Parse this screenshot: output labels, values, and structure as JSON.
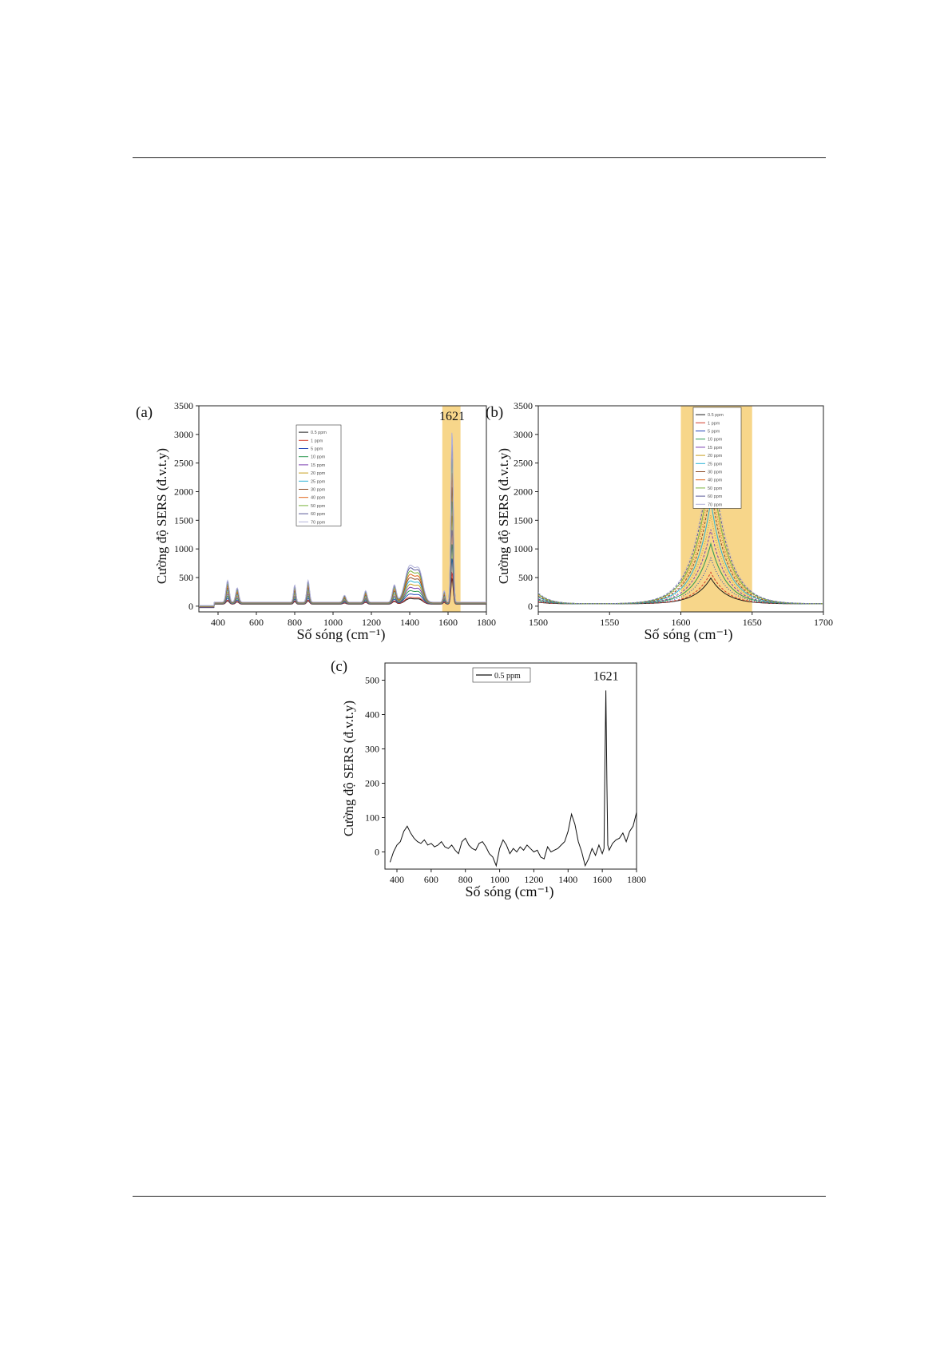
{
  "page": {
    "rules": [
      "top",
      "bottom"
    ]
  },
  "colors": {
    "highlight": "#f7d68a",
    "palette": [
      "#1a1a1a",
      "#d43a2a",
      "#2346b8",
      "#2d9a52",
      "#7a3fb0",
      "#c8a020",
      "#2bb3d6",
      "#8a4a24",
      "#e0651a",
      "#7ab33c",
      "#5a5a9a",
      "#b0b0d8",
      "#e8a060"
    ]
  },
  "chart_data": [
    {
      "panel": "(a)",
      "type": "line",
      "ylabel": "Cường độ SERS (đ.v.t.y)",
      "xlabel": "Số sóng (cm⁻¹)",
      "xlim": [
        300,
        1800
      ],
      "ylim": [
        -100,
        3500
      ],
      "xticks": [
        400,
        600,
        800,
        1000,
        1200,
        1400,
        1600,
        1800
      ],
      "yticks": [
        0,
        500,
        1000,
        1500,
        2000,
        2500,
        3000,
        3500
      ],
      "highlight_range": [
        1570,
        1665
      ],
      "annotations": [
        {
          "text": "1621",
          "x": 1621,
          "y": 3250
        }
      ],
      "legend": [
        "0.5 ppm",
        "1 ppm",
        "5 ppm",
        "10 ppm",
        "15 ppm",
        "20 ppm",
        "25 ppm",
        "30 ppm",
        "40 ppm",
        "50 ppm",
        "60 ppm",
        "70 ppm"
      ],
      "legend_position": "upper-middle",
      "series_peaks": [
        {
          "name": "0.5 ppm",
          "peak_1621": 450
        },
        {
          "name": "1 ppm",
          "peak_1621": 550
        },
        {
          "name": "5 ppm",
          "peak_1621": 800
        },
        {
          "name": "10 ppm",
          "peak_1621": 1050
        },
        {
          "name": "15 ppm",
          "peak_1621": 1300
        },
        {
          "name": "20 ppm",
          "peak_1621": 1550
        },
        {
          "name": "25 ppm",
          "peak_1621": 1800
        },
        {
          "name": "30 ppm",
          "peak_1621": 2050
        },
        {
          "name": "40 ppm",
          "peak_1621": 2300
        },
        {
          "name": "50 ppm",
          "peak_1621": 2550
        },
        {
          "name": "60 ppm",
          "peak_1621": 2800
        },
        {
          "name": "70 ppm",
          "peak_1621": 3000
        }
      ]
    },
    {
      "panel": "(b)",
      "type": "line",
      "ylabel": "Cường độ SERS (đ.v.t.y)",
      "xlabel": "Số sóng (cm⁻¹)",
      "xlim": [
        1500,
        1700
      ],
      "ylim": [
        -100,
        3500
      ],
      "xticks": [
        1500,
        1550,
        1600,
        1650,
        1700
      ],
      "yticks": [
        0,
        500,
        1000,
        1500,
        2000,
        2500,
        3000,
        3500
      ],
      "highlight_range": [
        1600,
        1650
      ],
      "annotations": [
        {
          "text": "1621",
          "x": 1621,
          "y": 3250
        }
      ],
      "legend": [
        "0.5 ppm",
        "1 ppm",
        "5 ppm",
        "10 ppm",
        "15 ppm",
        "20 ppm",
        "25 ppm",
        "30 ppm",
        "40 ppm",
        "50 ppm",
        "60 ppm",
        "70 ppm"
      ],
      "legend_position": "top-right",
      "series_peaks": [
        450,
        550,
        800,
        1050,
        1300,
        1550,
        1800,
        2050,
        2300,
        2550,
        2800,
        3000
      ]
    },
    {
      "panel": "(c)",
      "type": "line",
      "ylabel": "Cường độ SERS (đ.v.t.y)",
      "xlabel": "Số sóng (cm⁻¹)",
      "xlim": [
        330,
        1800
      ],
      "ylim": [
        -50,
        550
      ],
      "xticks": [
        400,
        600,
        800,
        1000,
        1200,
        1400,
        1600,
        1800
      ],
      "yticks": [
        0,
        100,
        200,
        300,
        400,
        500
      ],
      "annotations": [
        {
          "text": "1621",
          "x": 1621,
          "y": 500
        }
      ],
      "legend": [
        "0.5 ppm"
      ],
      "legend_position": "top-middle",
      "series": [
        {
          "name": "0.5 ppm",
          "x": [
            360,
            380,
            400,
            420,
            440,
            460,
            480,
            500,
            520,
            540,
            560,
            580,
            600,
            620,
            640,
            660,
            680,
            700,
            720,
            740,
            760,
            780,
            800,
            820,
            840,
            860,
            880,
            900,
            920,
            940,
            960,
            980,
            1000,
            1020,
            1040,
            1060,
            1080,
            1100,
            1120,
            1140,
            1160,
            1180,
            1200,
            1220,
            1240,
            1260,
            1280,
            1300,
            1320,
            1340,
            1360,
            1380,
            1400,
            1420,
            1440,
            1460,
            1480,
            1500,
            1520,
            1540,
            1560,
            1580,
            1600,
            1610,
            1615,
            1621,
            1627,
            1632,
            1640,
            1660,
            1680,
            1700,
            1720,
            1740,
            1760,
            1780,
            1800
          ],
          "y": [
            -30,
            0,
            20,
            30,
            60,
            75,
            55,
            40,
            30,
            25,
            35,
            20,
            25,
            15,
            20,
            30,
            15,
            10,
            20,
            5,
            -5,
            30,
            40,
            20,
            10,
            5,
            25,
            30,
            15,
            -5,
            -15,
            -40,
            10,
            35,
            20,
            -5,
            10,
            0,
            15,
            5,
            20,
            10,
            0,
            5,
            -15,
            -20,
            15,
            0,
            5,
            10,
            20,
            30,
            60,
            110,
            80,
            30,
            0,
            -40,
            -20,
            10,
            -10,
            20,
            -5,
            10,
            250,
            470,
            200,
            20,
            5,
            25,
            35,
            40,
            55,
            30,
            60,
            75,
            115
          ]
        }
      ]
    }
  ]
}
